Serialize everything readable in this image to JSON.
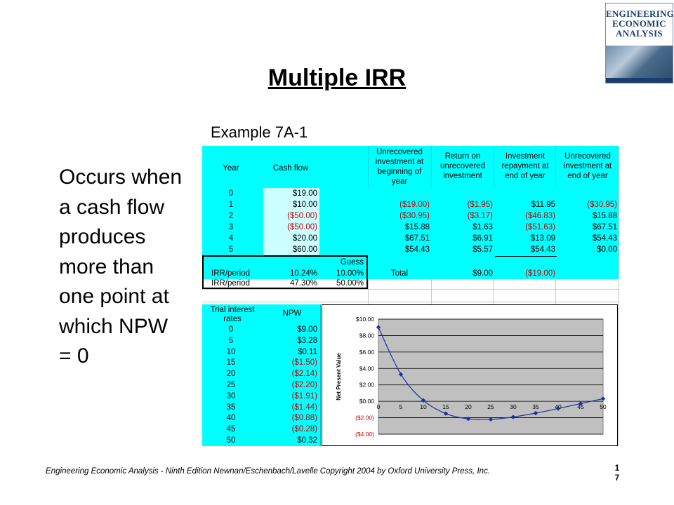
{
  "title": "Multiple IRR",
  "subtitle": "Example 7A-1",
  "occurs_text": "Occurs when a cash flow produces more than one point at which NPW = 0",
  "footer": "Engineering Economic Analysis - Ninth Edition  Newnan/Eschenbach/Lavelle   Copyright  2004 by Oxford University Press, Inc.",
  "page_number": "1\n7",
  "logo": {
    "line1": "ENGINEERING",
    "line2": "ECONOMIC",
    "line3": "ANALYSIS"
  },
  "colors": {
    "cell_fill": "#00ffff",
    "negative": "#cc0000",
    "plot_area": "#c0c0c0",
    "series": "#1f2fa0"
  },
  "table": {
    "headers": {
      "year": "Year",
      "cash_flow": "Cash flow",
      "unrecovered_begin": "Unrecovered investment at beginning of year",
      "return": "Return on unrecovered investment",
      "repayment": "Investment repayment at end of year",
      "unrecovered_end": "Unrecovered investment at end of year"
    },
    "rows": [
      {
        "year": "0",
        "cash_flow": "$19.00",
        "begin": "",
        "ret": "",
        "repay": "",
        "end": ""
      },
      {
        "year": "1",
        "cash_flow": "$10.00",
        "begin": "($19.00)",
        "ret": "($1.95)",
        "repay": "$11.95",
        "end": "($30.95)"
      },
      {
        "year": "2",
        "cash_flow": "($50.00)",
        "begin": "($30.95)",
        "ret": "($3.17)",
        "repay": "($46.83)",
        "end": "$15.88"
      },
      {
        "year": "3",
        "cash_flow": "($50.00)",
        "begin": "$15.88",
        "ret": "$1.63",
        "repay": "($51.63)",
        "end": "$67.51"
      },
      {
        "year": "4",
        "cash_flow": "$20.00",
        "begin": "$67.51",
        "ret": "$6.91",
        "repay": "$13.09",
        "end": "$54.43"
      },
      {
        "year": "5",
        "cash_flow": "$60.00",
        "begin": "$54.43",
        "ret": "$5.57",
        "repay": "$54.43",
        "end": "$0.00"
      }
    ],
    "guess_label": "Guess",
    "irr_rows": [
      {
        "label": "IRR/period",
        "value": "10.24%",
        "guess": "10.00%"
      },
      {
        "label": "IRR/period",
        "value": "47.30%",
        "guess": "50.00%"
      }
    ],
    "total_label": "Total",
    "total_repay": "$9.00",
    "total_end": "($19.00)",
    "npw_headers": {
      "rates": "Trial interest rates",
      "npw": "NPW"
    },
    "npw_rows": [
      {
        "rate": "0",
        "npw": "$9.00"
      },
      {
        "rate": "5",
        "npw": "$3.28"
      },
      {
        "rate": "10",
        "npw": "$0.11"
      },
      {
        "rate": "15",
        "npw": "($1.50)"
      },
      {
        "rate": "20",
        "npw": "($2.14)"
      },
      {
        "rate": "25",
        "npw": "($2.20)"
      },
      {
        "rate": "30",
        "npw": "($1.91)"
      },
      {
        "rate": "35",
        "npw": "($1.44)"
      },
      {
        "rate": "40",
        "npw": "($0.88)"
      },
      {
        "rate": "45",
        "npw": "($0.28)"
      },
      {
        "rate": "50",
        "npw": "$0.32"
      }
    ]
  },
  "chart_data": {
    "type": "line",
    "title": "",
    "xlabel": "",
    "ylabel": "Net Present Value",
    "x": [
      0,
      5,
      10,
      15,
      20,
      25,
      30,
      35,
      40,
      45,
      50
    ],
    "series": [
      {
        "values": [
          9.0,
          3.28,
          0.11,
          -1.5,
          -2.14,
          -2.2,
          -1.91,
          -1.44,
          -0.88,
          -0.28,
          0.32
        ]
      }
    ],
    "ylim": [
      -4,
      10
    ],
    "y_ticks": [
      -4,
      -2,
      0,
      2,
      4,
      6,
      8,
      10
    ],
    "y_tick_labels": [
      "($4.00)",
      "($2.00)",
      "$0.00",
      "$2.00",
      "$4.00",
      "$6.00",
      "$8.00",
      "$10.00"
    ],
    "x_tick_labels": [
      "0",
      "5",
      "10",
      "15",
      "20",
      "25",
      "30",
      "35",
      "40",
      "45",
      "50"
    ],
    "grid": true,
    "legend": "none",
    "markers": "diamond"
  }
}
